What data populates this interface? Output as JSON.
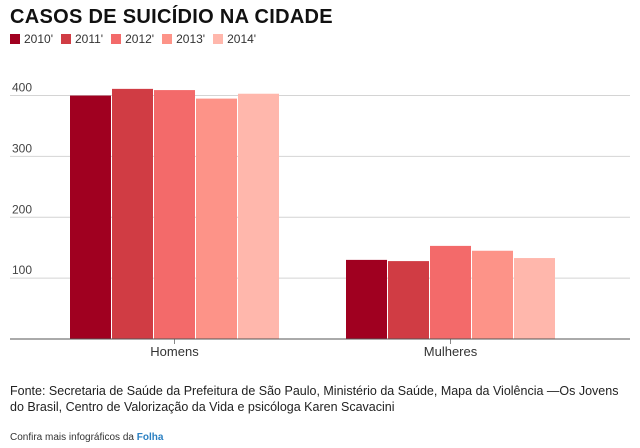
{
  "chart_data": {
    "type": "bar",
    "title": "CASOS DE SUICÍDIO NA CIDADE",
    "categories": [
      "Homens",
      "Mulheres"
    ],
    "series": [
      {
        "name": "2010'",
        "color": "#a00020",
        "values": [
          400,
          130
        ]
      },
      {
        "name": "2011'",
        "color": "#d03c44",
        "values": [
          411,
          128
        ]
      },
      {
        "name": "2012'",
        "color": "#f36a6a",
        "values": [
          409,
          153
        ]
      },
      {
        "name": "2013'",
        "color": "#fd9388",
        "values": [
          395,
          145
        ]
      },
      {
        "name": "2014'",
        "color": "#ffb7ac",
        "values": [
          403,
          133
        ]
      }
    ],
    "yticks": [
      "400",
      "300",
      "200",
      "100"
    ],
    "ylim": [
      0,
      465
    ],
    "grid": true,
    "legend_position": "top-left"
  },
  "footer": {
    "source": "Fonte: Secretaria de Saúde da Prefeitura de São Paulo, Ministério da Saúde, Mapa da Violência —Os Jovens do Brasil, Centro de Valorização da Vida e psicóloga Karen Scavacini",
    "credit_text": "Confira mais infográficos da",
    "credit_link": "Folha"
  }
}
